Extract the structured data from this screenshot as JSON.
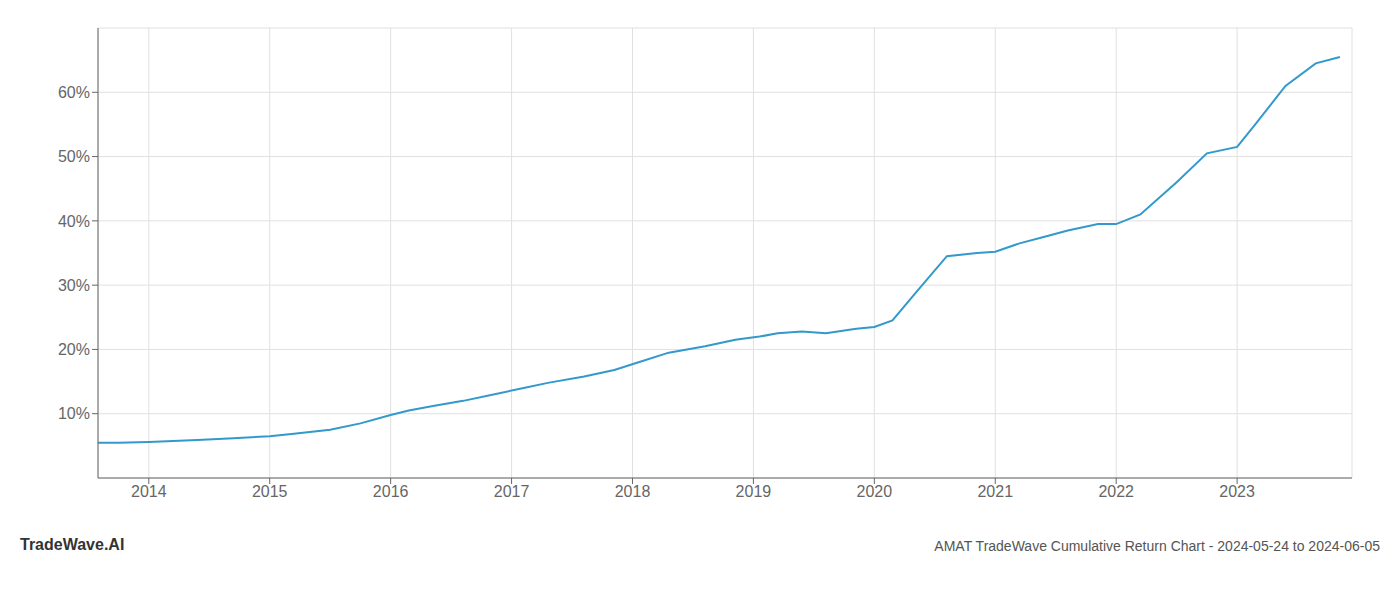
{
  "chart_data": {
    "type": "line",
    "title": "AMAT TradeWave Cumulative Return Chart - 2024-05-24 to 2024-06-05",
    "annotations": [
      "TradeWave.AI"
    ],
    "color": "#3399cc",
    "grid": true,
    "x": [
      2013.58,
      2013.75,
      2014.0,
      2014.15,
      2014.4,
      2014.7,
      2015.0,
      2015.2,
      2015.5,
      2015.75,
      2016.0,
      2016.15,
      2016.35,
      2016.6,
      2016.85,
      2017.1,
      2017.3,
      2017.6,
      2017.85,
      2018.05,
      2018.3,
      2018.6,
      2018.85,
      2019.05,
      2019.2,
      2019.4,
      2019.6,
      2019.85,
      2020.0,
      2020.15,
      2020.35,
      2020.6,
      2020.85,
      2021.0,
      2021.2,
      2021.4,
      2021.6,
      2021.85,
      2022.0,
      2022.2,
      2022.5,
      2022.75,
      2023.0,
      2023.15,
      2023.4,
      2023.65,
      2023.85
    ],
    "values": [
      5.5,
      5.5,
      5.6,
      5.7,
      5.9,
      6.2,
      6.5,
      6.9,
      7.5,
      8.5,
      9.8,
      10.5,
      11.2,
      12.0,
      13.0,
      14.0,
      14.8,
      15.8,
      16.8,
      18.0,
      19.5,
      20.5,
      21.5,
      22.0,
      22.5,
      22.8,
      22.5,
      23.2,
      23.5,
      24.5,
      29.0,
      34.5,
      35.0,
      35.2,
      36.5,
      37.5,
      38.5,
      39.5,
      39.5,
      41.0,
      46.0,
      50.5,
      51.5,
      55.0,
      61.0,
      64.5,
      65.5
    ],
    "xlim": [
      2013.58,
      2023.95
    ],
    "ylim": [
      0,
      70
    ],
    "xticks": [
      2014,
      2015,
      2016,
      2017,
      2018,
      2019,
      2020,
      2021,
      2022,
      2023
    ],
    "yticks": [
      {
        "value": 10,
        "label": "10%"
      },
      {
        "value": 20,
        "label": "20%"
      },
      {
        "value": 30,
        "label": "30%"
      },
      {
        "value": 40,
        "label": "40%"
      },
      {
        "value": 50,
        "label": "50%"
      },
      {
        "value": 60,
        "label": "60%"
      }
    ]
  }
}
